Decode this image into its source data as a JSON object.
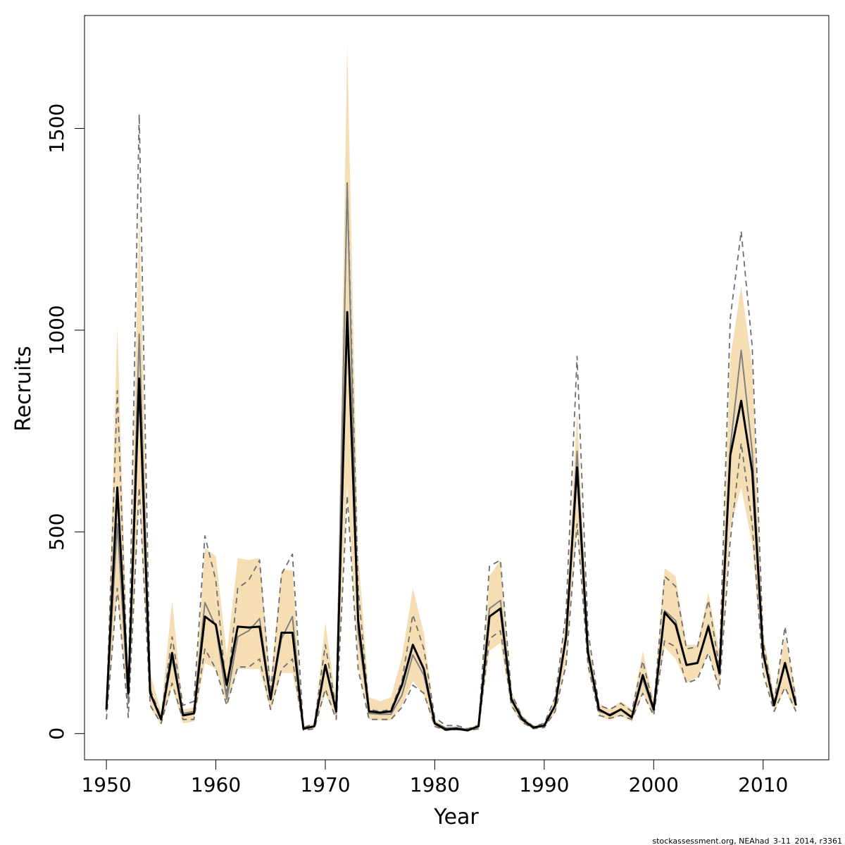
{
  "chart_data": {
    "type": "line",
    "title": "",
    "xlabel": "Year",
    "ylabel": "Recruits",
    "xlim": [
      1948,
      2016
    ],
    "ylim": [
      -65,
      1780
    ],
    "x_ticks": [
      1950,
      1960,
      1970,
      1980,
      1990,
      2000,
      2010
    ],
    "y_ticks": [
      0,
      500,
      1000,
      1500
    ],
    "grid": false,
    "legend": "none",
    "colors": {
      "band": "#f5deb3",
      "estimate": "#000000",
      "comparison": "#808080",
      "comparison_ci": "#6e6e6e"
    },
    "x": [
      1950,
      1951,
      1952,
      1953,
      1954,
      1955,
      1956,
      1957,
      1958,
      1959,
      1960,
      1961,
      1962,
      1963,
      1964,
      1965,
      1966,
      1967,
      1968,
      1969,
      1970,
      1971,
      1972,
      1973,
      1974,
      1975,
      1976,
      1977,
      1978,
      1979,
      1980,
      1981,
      1982,
      1983,
      1984,
      1985,
      1986,
      1987,
      1988,
      1989,
      1990,
      1991,
      1992,
      1993,
      1994,
      1995,
      1996,
      1997,
      1998,
      1999,
      2000,
      2001,
      2002,
      2003,
      2004,
      2005,
      2006,
      2007,
      2008,
      2009,
      2010,
      2011,
      2012,
      2013
    ],
    "series": [
      {
        "role": "estimate",
        "values": [
          60,
          610,
          100,
          880,
          100,
          35,
          200,
          45,
          50,
          290,
          270,
          120,
          265,
          263,
          265,
          85,
          250,
          250,
          12,
          18,
          170,
          55,
          1045,
          280,
          55,
          52,
          55,
          120,
          220,
          160,
          25,
          10,
          12,
          8,
          18,
          290,
          310,
          85,
          35,
          15,
          20,
          70,
          240,
          660,
          200,
          60,
          45,
          60,
          40,
          145,
          60,
          300,
          270,
          170,
          175,
          265,
          150,
          690,
          825,
          650,
          200,
          70,
          175,
          70
        ]
      },
      {
        "role": "estimate-upper",
        "values": [
          60,
          1010,
          120,
          1300,
          150,
          55,
          330,
          60,
          65,
          460,
          440,
          195,
          435,
          430,
          435,
          130,
          405,
          405,
          17,
          25,
          275,
          80,
          1710,
          455,
          90,
          80,
          90,
          190,
          360,
          250,
          35,
          15,
          17,
          12,
          25,
          390,
          430,
          105,
          45,
          20,
          25,
          90,
          285,
          800,
          235,
          75,
          60,
          80,
          60,
          205,
          80,
          410,
          390,
          220,
          220,
          350,
          200,
          930,
          1110,
          910,
          250,
          95,
          240,
          100
        ]
      },
      {
        "role": "estimate-lower",
        "values": [
          35,
          350,
          60,
          600,
          65,
          22,
          115,
          25,
          30,
          175,
          160,
          70,
          160,
          160,
          160,
          55,
          150,
          150,
          8,
          12,
          100,
          35,
          620,
          170,
          35,
          33,
          33,
          70,
          130,
          95,
          15,
          6,
          8,
          5,
          11,
          205,
          225,
          65,
          25,
          11,
          15,
          50,
          175,
          520,
          160,
          45,
          33,
          45,
          28,
          100,
          45,
          215,
          185,
          125,
          140,
          200,
          110,
          510,
          610,
          470,
          160,
          55,
          110,
          50
        ]
      },
      {
        "role": "comparison",
        "values": [
          55,
          520,
          75,
          990,
          100,
          35,
          185,
          50,
          55,
          325,
          265,
          85,
          240,
          255,
          285,
          90,
          235,
          290,
          12,
          19,
          165,
          50,
          1360,
          250,
          50,
          48,
          48,
          95,
          195,
          145,
          27,
          14,
          15,
          10,
          17,
          310,
          330,
          90,
          33,
          15,
          18,
          70,
          235,
          700,
          210,
          55,
          48,
          60,
          42,
          135,
          55,
          305,
          280,
          170,
          175,
          270,
          145,
          710,
          950,
          700,
          200,
          70,
          170,
          70
        ]
      },
      {
        "role": "comparison-upper",
        "values": [
          60,
          850,
          90,
          1535,
          110,
          40,
          240,
          70,
          80,
          490,
          380,
          95,
          360,
          380,
          430,
          100,
          395,
          445,
          15,
          25,
          220,
          60,
          1365,
          360,
          60,
          55,
          60,
          130,
          295,
          210,
          40,
          20,
          20,
          12,
          20,
          415,
          430,
          100,
          40,
          18,
          25,
          90,
          300,
          935,
          255,
          70,
          60,
          75,
          55,
          180,
          65,
          390,
          365,
          210,
          215,
          330,
          165,
          1030,
          1245,
          960,
          230,
          75,
          265,
          80
        ]
      },
      {
        "role": "comparison-lower",
        "values": [
          35,
          360,
          40,
          610,
          70,
          25,
          125,
          35,
          35,
          210,
          160,
          70,
          165,
          165,
          185,
          60,
          160,
          185,
          8,
          12,
          110,
          35,
          590,
          160,
          35,
          35,
          35,
          65,
          120,
          100,
          18,
          8,
          10,
          7,
          12,
          235,
          255,
          70,
          28,
          12,
          15,
          55,
          170,
          520,
          170,
          45,
          38,
          45,
          35,
          100,
          45,
          230,
          215,
          125,
          135,
          200,
          110,
          480,
          720,
          520,
          150,
          55,
          115,
          55
        ]
      }
    ],
    "footer": "stockassessment.org, NEAhad_3-11_2014, r3361"
  }
}
